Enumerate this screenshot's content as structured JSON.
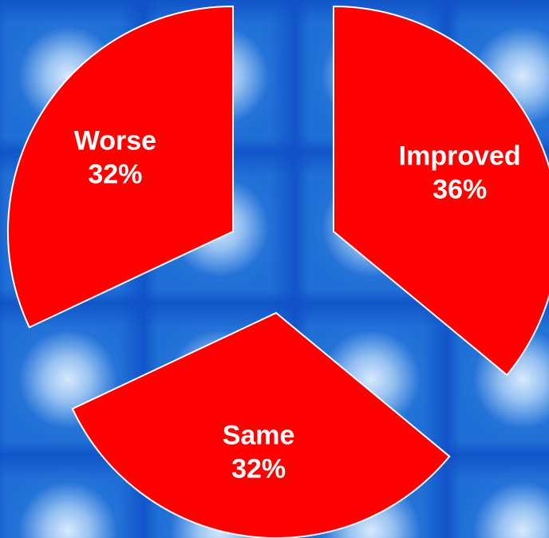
{
  "chart_data": {
    "type": "pie",
    "exploded": true,
    "slices": [
      {
        "label": "Improved",
        "percent_label": "36%",
        "value": 36
      },
      {
        "label": "Same",
        "percent_label": "32%",
        "value": 32
      },
      {
        "label": "Worse",
        "percent_label": "32%",
        "value": 32
      }
    ],
    "colors": {
      "slice_fill": "#ff0000",
      "slice_stroke": "#ffffff",
      "label_text": "#ffffff",
      "background": "#1f6fd6"
    }
  }
}
